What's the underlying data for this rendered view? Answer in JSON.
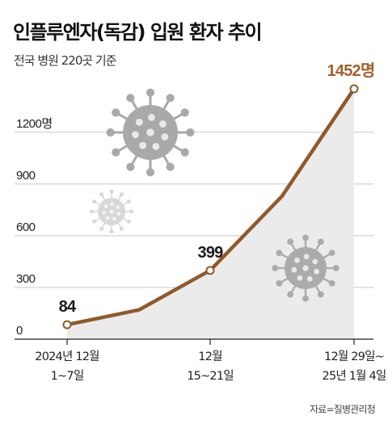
{
  "title": "인플루엔자(독감) 입원 환자 추이",
  "subtitle": "전국 병원 220곳 기준",
  "source": "자료=질병관리청",
  "colors": {
    "line": "#8f5a2c",
    "highlight_label": "#a0612e",
    "area": "#ebebeb",
    "grid": "#c8c8c8",
    "virus": "#a5a5a5",
    "virus_faint": "#d4d4d4"
  },
  "decorations": [
    "virus-icon",
    "virus-icon",
    "virus-icon"
  ],
  "chart_data": {
    "type": "area",
    "x_tick_labels": [
      [
        "2024년 12월",
        "1~7일"
      ],
      [
        "12월",
        "15~21일"
      ],
      [
        "12월 29일~",
        "25년 1월 4일"
      ]
    ],
    "x": [
      "2024년 12월 1~7일",
      "",
      "12월 15~21일",
      "",
      "12월 29일~25년 1월 4일"
    ],
    "values": [
      84,
      170,
      399,
      830,
      1452
    ],
    "data_labels": [
      {
        "index": 0,
        "text": "84",
        "highlight": false
      },
      {
        "index": 2,
        "text": "399",
        "highlight": false
      },
      {
        "index": 4,
        "text": "1452명",
        "highlight": true
      }
    ],
    "y_ticks": [
      0,
      300,
      600,
      900,
      1200
    ],
    "y_tick_labels": [
      "0",
      "300",
      "600",
      "900",
      "1200명"
    ],
    "ylim": [
      0,
      1452
    ],
    "grid": true
  }
}
